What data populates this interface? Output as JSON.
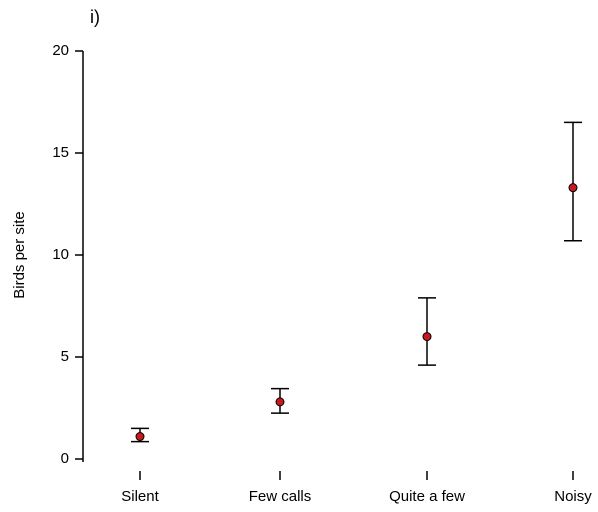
{
  "chart_data": {
    "type": "errorpoint",
    "panel_label": "i)",
    "y_label": "Birds per site",
    "categories": [
      "Silent",
      "Few calls",
      "Quite a few",
      "Noisy"
    ],
    "values": [
      1.1,
      2.8,
      6.0,
      13.3
    ],
    "lower": [
      0.85,
      2.25,
      4.6,
      10.7
    ],
    "upper": [
      1.5,
      3.45,
      7.9,
      16.5
    ],
    "color": "#c8191f",
    "ylim": [
      0,
      20
    ],
    "yticks": [
      0,
      5,
      10,
      15,
      20
    ]
  }
}
